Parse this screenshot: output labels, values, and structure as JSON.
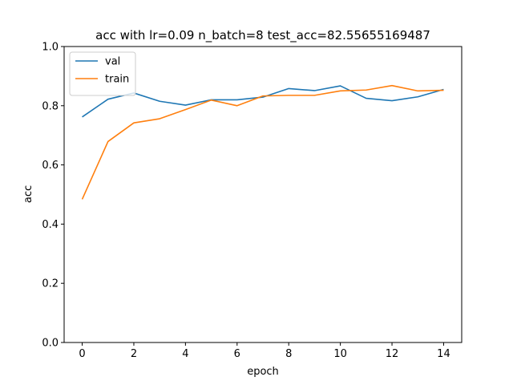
{
  "chart_data": {
    "type": "line",
    "title": "acc with lr=0.09 n_batch=8 test_acc=82.55655169487",
    "xlabel": "epoch",
    "ylabel": "acc",
    "xlim": [
      -0.7,
      14.7
    ],
    "ylim": [
      0.0,
      1.0
    ],
    "xticks": [
      0,
      2,
      4,
      6,
      8,
      10,
      12,
      14
    ],
    "yticks": [
      0.0,
      0.2,
      0.4,
      0.6,
      0.8,
      1.0
    ],
    "grid": false,
    "legend_position": "top-left",
    "x": [
      0,
      1,
      2,
      3,
      4,
      5,
      6,
      7,
      8,
      9,
      10,
      11,
      12,
      13,
      14
    ],
    "series": [
      {
        "name": "val",
        "color": "#1f77b4",
        "values": [
          0.762,
          0.822,
          0.843,
          0.815,
          0.802,
          0.82,
          0.82,
          0.829,
          0.858,
          0.851,
          0.867,
          0.825,
          0.817,
          0.83,
          0.855
        ]
      },
      {
        "name": "train",
        "color": "#ff7f0e",
        "values": [
          0.484,
          0.679,
          0.742,
          0.756,
          0.787,
          0.819,
          0.8,
          0.833,
          0.835,
          0.835,
          0.85,
          0.853,
          0.868,
          0.85,
          0.852
        ]
      }
    ]
  }
}
